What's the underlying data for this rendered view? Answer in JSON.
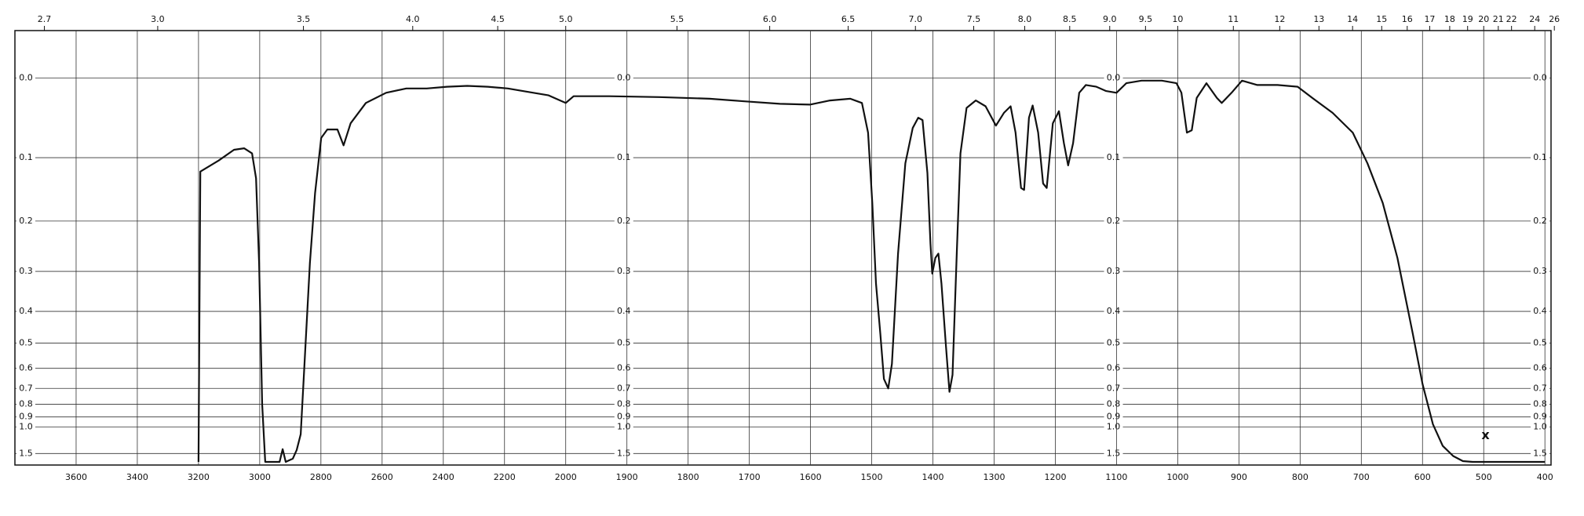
{
  "chart_data": {
    "type": "line",
    "x_scale_change_at": 2000,
    "xlim": [
      3800,
      390
    ],
    "xticks": [
      3600,
      3400,
      3200,
      3000,
      2800,
      2600,
      2400,
      2200,
      2000,
      1900,
      1800,
      1700,
      1600,
      1500,
      1400,
      1300,
      1200,
      1100,
      1000,
      900,
      800,
      700,
      600,
      500,
      400
    ],
    "top_ticks": [
      2.7,
      {
        "value": 3,
        "label": "3.0"
      },
      3.5,
      {
        "value": 4,
        "label": "4.0"
      },
      4.5,
      {
        "value": 5,
        "label": "5.0"
      },
      5.5,
      {
        "value": 6,
        "label": "6.0"
      },
      6.5,
      {
        "value": 7,
        "label": "7.0"
      },
      7.5,
      {
        "value": 8,
        "label": "8.0"
      },
      8.5,
      {
        "value": 9,
        "label": "9.0"
      },
      9.5,
      10,
      11,
      12,
      13,
      14,
      15,
      16,
      17,
      18,
      19,
      20,
      21,
      22,
      24,
      26
    ],
    "yscale": "absorbance",
    "ylim": [
      -0.05,
      2
    ],
    "yticks": [
      {
        "value": 0,
        "label": "0.0"
      },
      0.1,
      0.2,
      0.3,
      0.4,
      0.5,
      0.6,
      0.7,
      0.8,
      0.9,
      {
        "value": 1,
        "label": "1.0"
      },
      1.5
    ],
    "grid": true,
    "annotation": "x",
    "series": [
      {
        "color": "#111111",
        "x": [
          3200,
          3194,
          3134,
          3084,
          3051,
          3025,
          3012,
          3002,
          2992,
          2982,
          2935,
          2925,
          2915,
          2892,
          2879,
          2866,
          2852,
          2836,
          2819,
          2799,
          2779,
          2746,
          2726,
          2703,
          2653,
          2587,
          2521,
          2454,
          2388,
          2322,
          2255,
          2189,
          2123,
          2056,
          2000,
          1987,
          1929,
          1847,
          1765,
          1708,
          1650,
          1601,
          1568,
          1535,
          1516,
          1506,
          1499,
          1493,
          1486,
          1480,
          1473,
          1467,
          1457,
          1445,
          1433,
          1424,
          1417,
          1409,
          1404,
          1401,
          1396,
          1391,
          1386,
          1379,
          1373,
          1368,
          1361,
          1355,
          1345,
          1330,
          1314,
          1297,
          1284,
          1273,
          1265,
          1256,
          1251,
          1243,
          1237,
          1228,
          1220,
          1214,
          1204,
          1194,
          1186,
          1179,
          1171,
          1161,
          1150,
          1133,
          1117,
          1100,
          1084,
          1059,
          1026,
          1002,
          994,
          985,
          977,
          969,
          953,
          936,
          928,
          912,
          895,
          870,
          837,
          804,
          780,
          747,
          714,
          690,
          665,
          641,
          616,
          600,
          583,
          567,
          550,
          534,
          518,
          400
        ],
        "values": [
          2,
          0.12,
          0.104,
          0.089,
          0.087,
          0.094,
          0.13,
          0.282,
          0.8,
          2,
          2,
          1.37,
          2,
          1.74,
          1.39,
          1.09,
          0.54,
          0.282,
          0.153,
          0.073,
          0.062,
          0.062,
          0.083,
          0.054,
          0.029,
          0.017,
          0.012,
          0.012,
          0.01,
          0.009,
          0.01,
          0.012,
          0.016,
          0.02,
          0.029,
          0.021,
          0.021,
          0.022,
          0.024,
          0.027,
          0.03,
          0.031,
          0.026,
          0.024,
          0.029,
          0.066,
          0.169,
          0.328,
          0.467,
          0.65,
          0.7,
          0.58,
          0.262,
          0.108,
          0.06,
          0.047,
          0.05,
          0.122,
          0.242,
          0.305,
          0.271,
          0.262,
          0.328,
          0.502,
          0.72,
          0.63,
          0.262,
          0.094,
          0.035,
          0.026,
          0.033,
          0.057,
          0.041,
          0.033,
          0.066,
          0.145,
          0.148,
          0.047,
          0.032,
          0.066,
          0.138,
          0.145,
          0.054,
          0.039,
          0.08,
          0.111,
          0.08,
          0.017,
          0.008,
          0.01,
          0.015,
          0.017,
          0.006,
          0.003,
          0.003,
          0.006,
          0.017,
          0.066,
          0.063,
          0.023,
          0.006,
          0.023,
          0.029,
          0.017,
          0.003,
          0.008,
          0.008,
          0.01,
          0.023,
          0.041,
          0.066,
          0.108,
          0.169,
          0.271,
          0.467,
          0.676,
          0.97,
          1.29,
          1.6,
          1.92,
          2,
          2
        ]
      }
    ]
  }
}
